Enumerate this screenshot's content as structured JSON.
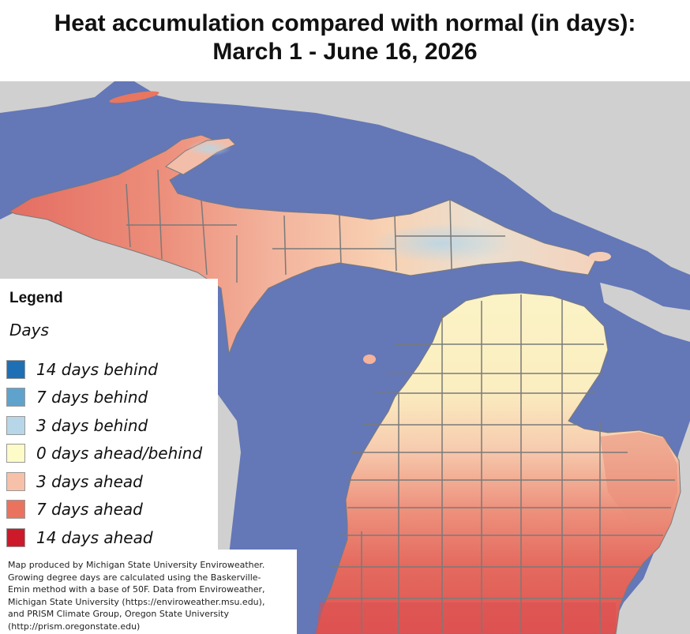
{
  "title": {
    "line1": "Heat accumulation compared with normal (in days):",
    "line2": "March 1 - June 16, 2026"
  },
  "legend": {
    "heading": "Legend",
    "subheading": "Days",
    "items": [
      {
        "label": "14 days behind",
        "color": "#1f6fb4"
      },
      {
        "label": "7 days behind",
        "color": "#5fa3cc"
      },
      {
        "label": "3 days behind",
        "color": "#b7d7e8"
      },
      {
        "label": "0 days ahead/behind",
        "color": "#fdfbc8"
      },
      {
        "label": "3 days ahead",
        "color": "#f6c1a8"
      },
      {
        "label": "7 days ahead",
        "color": "#e9735f"
      },
      {
        "label": "14 days ahead",
        "color": "#cc1a2a"
      }
    ]
  },
  "credit": "Map produced by Michigan State University Enviroweather.\nGrowing degree days are calculated using the Baskerville-\nEmin method with a base of 50F.  Data from Enviroweather,\nMichigan State University (https://enviroweather.msu.edu),\nand PRISM Climate Group, Oregon State University\n(http://prism.oregonstate.edu)",
  "colors": {
    "water": "#6477b7",
    "outside_land": "#d0d0d0",
    "county_lines": "#7a7a7a"
  }
}
